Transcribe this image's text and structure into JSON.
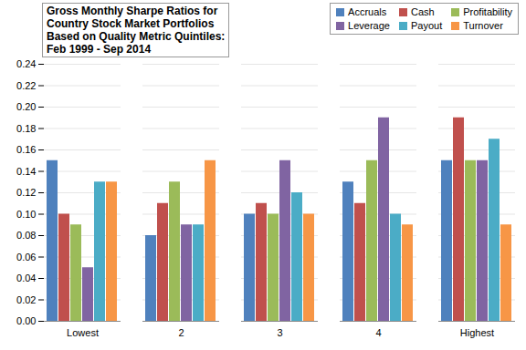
{
  "chart_data": {
    "type": "bar",
    "title": "Gross Monthly Sharpe Ratios for\nCountry Stock Market Portfolios\nBased on Quality Metric Quintiles:\nFeb 1999 - Sep 2014",
    "categories": [
      "Lowest",
      "2",
      "3",
      "4",
      "Highest"
    ],
    "series": [
      {
        "name": "Accruals",
        "color": "#4f81bd",
        "values": [
          0.15,
          0.08,
          0.1,
          0.13,
          0.15
        ]
      },
      {
        "name": "Cash",
        "color": "#c0504d",
        "values": [
          0.1,
          0.11,
          0.11,
          0.11,
          0.19
        ]
      },
      {
        "name": "Profitability",
        "color": "#9bbb59",
        "values": [
          0.09,
          0.13,
          0.1,
          0.15,
          0.15
        ]
      },
      {
        "name": "Leverage",
        "color": "#8064a2",
        "values": [
          0.05,
          0.09,
          0.15,
          0.19,
          0.15
        ]
      },
      {
        "name": "Payout",
        "color": "#4bacc6",
        "values": [
          0.13,
          0.09,
          0.12,
          0.1,
          0.17
        ]
      },
      {
        "name": "Turnover",
        "color": "#f79646",
        "values": [
          0.13,
          0.15,
          0.1,
          0.09,
          0.09
        ]
      }
    ],
    "ylim": [
      0,
      0.24
    ],
    "yticks": [
      {
        "value": 0,
        "label": "0.00"
      },
      {
        "value": 0.02,
        "label": "0.02"
      },
      {
        "value": 0.04,
        "label": "0.04"
      },
      {
        "value": 0.06,
        "label": "0.06"
      },
      {
        "value": 0.08,
        "label": "0.08"
      },
      {
        "value": 0.1,
        "label": "0.10"
      },
      {
        "value": 0.12,
        "label": "0.12"
      },
      {
        "value": 0.14,
        "label": "0.14"
      },
      {
        "value": 0.16,
        "label": "0.16"
      },
      {
        "value": 0.18,
        "label": "0.18"
      },
      {
        "value": 0.2,
        "label": "0.20"
      },
      {
        "value": 0.22,
        "label": "0.22"
      },
      {
        "value": 0.24,
        "label": "0.24"
      }
    ],
    "grid": true,
    "legend": "top-right"
  }
}
